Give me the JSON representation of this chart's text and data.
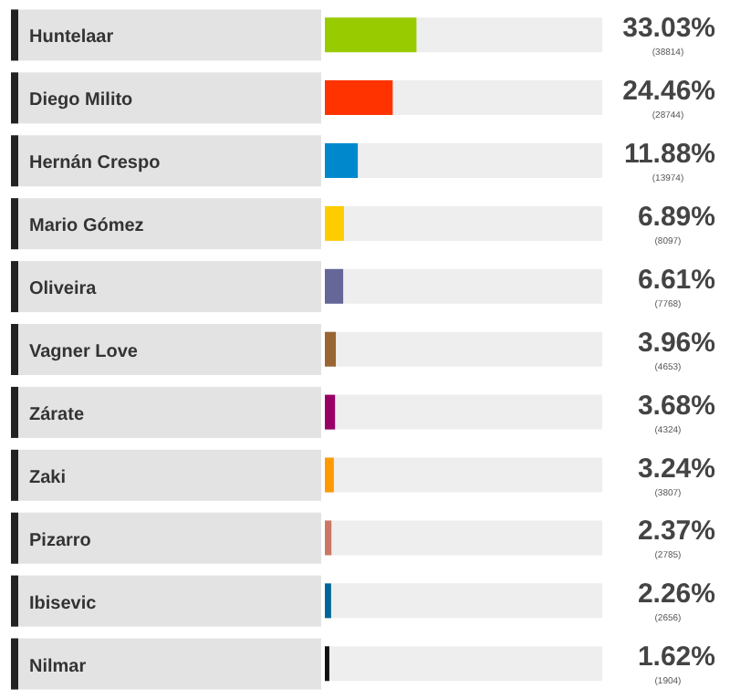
{
  "chart_data": {
    "type": "bar",
    "orientation": "horizontal",
    "categories": [
      "Huntelaar",
      "Diego Milito",
      "Hernán Crespo",
      "Mario Gómez",
      "Oliveira",
      "Vagner Love",
      "Zárate",
      "Zaki",
      "Pizarro",
      "Ibisevic",
      "Nilmar"
    ],
    "values": [
      33.03,
      24.46,
      11.88,
      6.89,
      6.61,
      3.96,
      3.68,
      3.24,
      2.37,
      2.26,
      1.62
    ],
    "colors": [
      "#99cc00",
      "#ff3300",
      "#0088cc",
      "#ffcc00",
      "#666699",
      "#996633",
      "#990066",
      "#ff9900",
      "#cc7766",
      "#006699",
      "#111111"
    ],
    "value_labels": [
      "33.03%",
      "24.46%",
      "11.88%",
      "6.89%",
      "6.61%",
      "3.96%",
      "3.68%",
      "3.24%",
      "2.37%",
      "2.26%",
      "1.62%"
    ],
    "annotations": [
      "(38814)",
      "(28744)",
      "(13974)",
      "(8097)",
      "(7768)",
      "(4653)",
      "(4324)",
      "(3807)",
      "(2785)",
      "(2656)",
      "(1904)"
    ],
    "xlim": [
      0,
      100
    ],
    "tick_labels": "y"
  }
}
